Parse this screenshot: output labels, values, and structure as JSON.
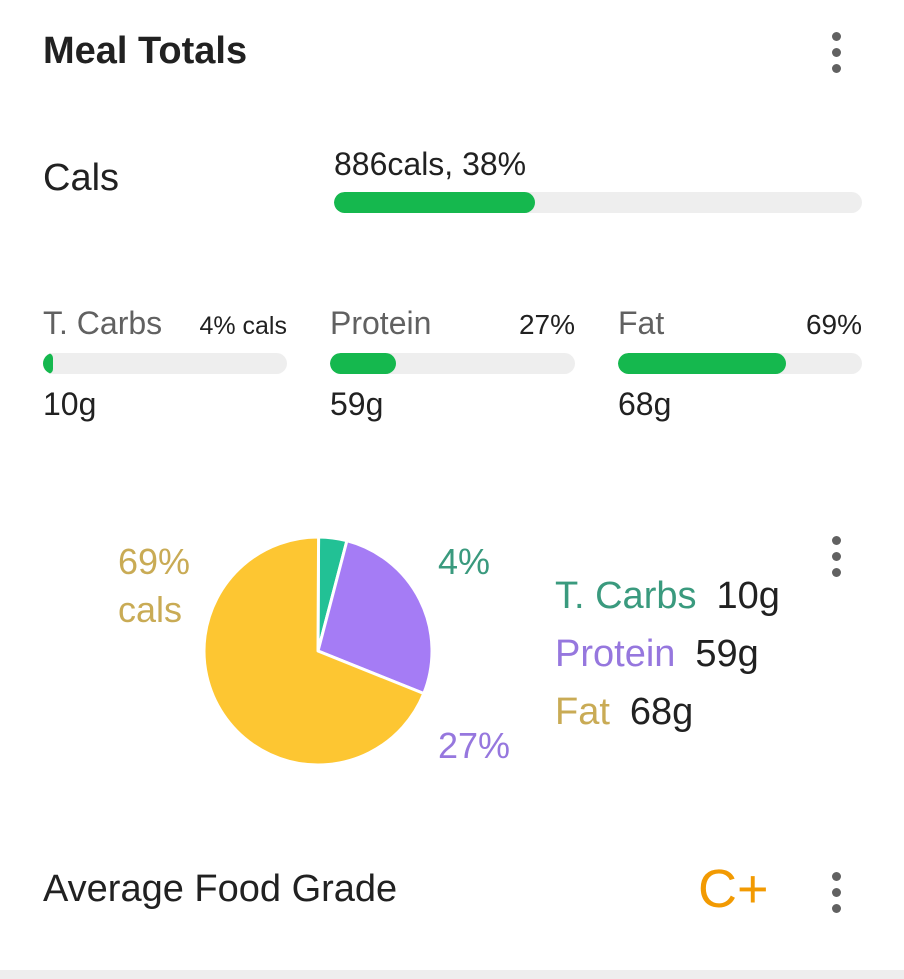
{
  "header": {
    "title": "Meal Totals"
  },
  "cals": {
    "label": "Cals",
    "value_text": "886cals, 38%",
    "fraction": 0.38,
    "color": "#15b84e"
  },
  "macros": [
    {
      "name": "T. Carbs",
      "pct_text": "4% cals",
      "fraction": 0.04,
      "grams": "10g"
    },
    {
      "name": "Protein",
      "pct_text": "27%",
      "fraction": 0.27,
      "grams": "59g"
    },
    {
      "name": "Fat",
      "pct_text": "69%",
      "fraction": 0.69,
      "grams": "68g"
    }
  ],
  "chart_data": {
    "type": "pie",
    "slices": [
      {
        "label": "T. Carbs",
        "value": 4,
        "pct_label": "4%",
        "color": "#22c195",
        "text_color": "#3a9a7e"
      },
      {
        "label": "Protein",
        "value": 27,
        "pct_label": "27%",
        "color": "#a57cf5",
        "text_color": "#9677de"
      },
      {
        "label": "Fat",
        "value": 69,
        "pct_label": "69%",
        "pct_sub": "cals",
        "color": "#fdc632",
        "text_color": "#c9ab55"
      }
    ],
    "legend": [
      {
        "name": "T. Carbs",
        "value": "10g"
      },
      {
        "name": "Protein",
        "value": "59g"
      },
      {
        "name": "Fat",
        "value": "68g"
      }
    ],
    "legend_position": "right"
  },
  "grade": {
    "label": "Average Food Grade",
    "value": "C+"
  },
  "icons": {
    "menu": "more-vert-icon"
  }
}
